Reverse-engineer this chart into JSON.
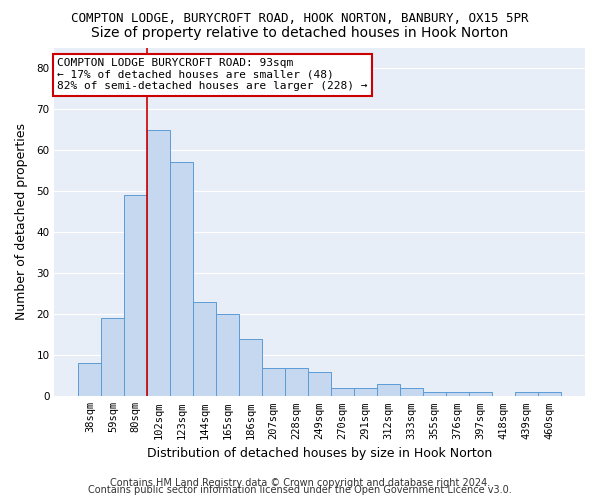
{
  "title_line1": "COMPTON LODGE, BURYCROFT ROAD, HOOK NORTON, BANBURY, OX15 5PR",
  "title_line2": "Size of property relative to detached houses in Hook Norton",
  "xlabel": "Distribution of detached houses by size in Hook Norton",
  "ylabel": "Number of detached properties",
  "categories": [
    "38sqm",
    "59sqm",
    "80sqm",
    "102sqm",
    "123sqm",
    "144sqm",
    "165sqm",
    "186sqm",
    "207sqm",
    "228sqm",
    "249sqm",
    "270sqm",
    "291sqm",
    "312sqm",
    "333sqm",
    "355sqm",
    "376sqm",
    "397sqm",
    "418sqm",
    "439sqm",
    "460sqm"
  ],
  "values": [
    8,
    19,
    49,
    65,
    57,
    23,
    20,
    14,
    7,
    7,
    6,
    2,
    2,
    3,
    2,
    1,
    1,
    1,
    0,
    1,
    1
  ],
  "bar_color": "#c5d8f0",
  "bar_edge_color": "#5b9bd5",
  "vline_position": 2.5,
  "vline_color": "#cc0000",
  "annotation_text": "COMPTON LODGE BURYCROFT ROAD: 93sqm\n← 17% of detached houses are smaller (48)\n82% of semi-detached houses are larger (228) →",
  "annotation_box_color": "#ffffff",
  "annotation_box_edge": "#cc0000",
  "ylim": [
    0,
    85
  ],
  "yticks": [
    0,
    10,
    20,
    30,
    40,
    50,
    60,
    70,
    80
  ],
  "footer_line1": "Contains HM Land Registry data © Crown copyright and database right 2024.",
  "footer_line2": "Contains public sector information licensed under the Open Government Licence v3.0.",
  "plot_bg_color": "#e8eef8",
  "fig_bg_color": "#ffffff",
  "grid_color": "#ffffff",
  "title1_fontsize": 9,
  "title2_fontsize": 10,
  "tick_fontsize": 7.5,
  "label_fontsize": 9,
  "footer_fontsize": 7,
  "annot_fontsize": 8
}
